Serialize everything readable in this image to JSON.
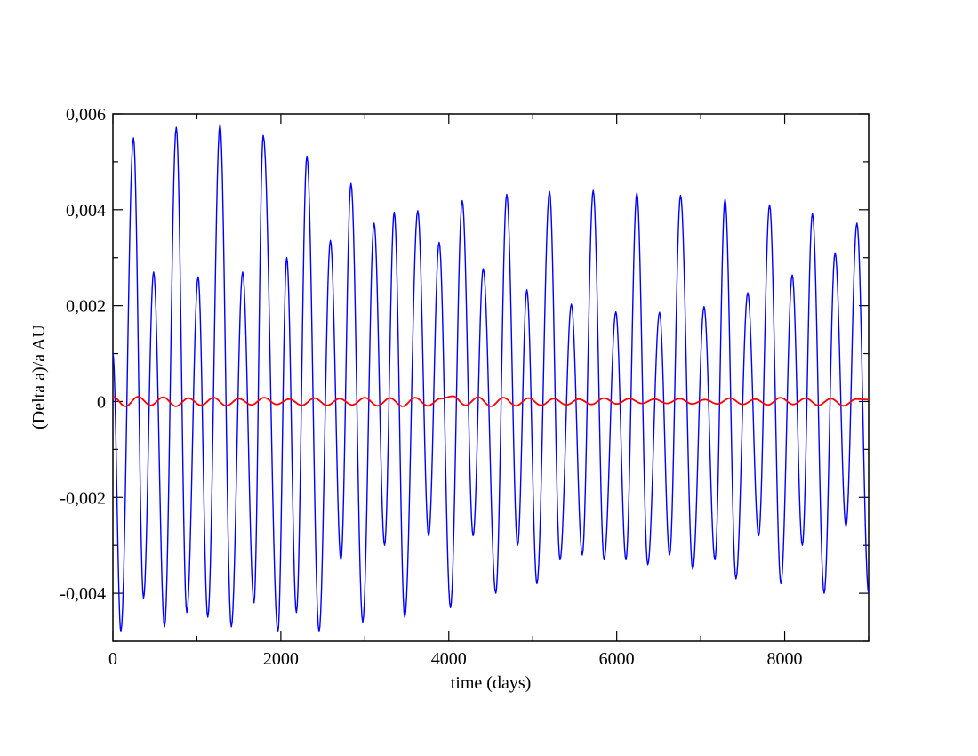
{
  "chart_data": {
    "type": "line",
    "title": "",
    "xlabel": "time (days)",
    "ylabel": "(Delta a)/a AU",
    "xlim": [
      0,
      9000
    ],
    "ylim": [
      -0.005,
      0.006
    ],
    "xticks": [
      0,
      2000,
      4000,
      6000,
      8000
    ],
    "xtick_labels": [
      "0",
      "2000",
      "4000",
      "6000",
      "8000"
    ],
    "yticks": [
      -0.004,
      -0.002,
      0,
      0.002,
      0.004,
      0.006
    ],
    "ytick_labels": [
      "-0,004",
      "-0,002",
      "0",
      "0,002",
      "0,004",
      "0,006"
    ],
    "grid": false,
    "legend": "none",
    "series": [
      {
        "color": "#0000ff",
        "x": [
          0,
          95,
          245,
          365,
          485,
          615,
          755,
          880,
          1015,
          1130,
          1275,
          1410,
          1545,
          1680,
          1790,
          1965,
          2070,
          2185,
          2310,
          2455,
          2590,
          2715,
          2835,
          2975,
          3110,
          3235,
          3350,
          3475,
          3630,
          3760,
          3885,
          4020,
          4160,
          4290,
          4410,
          4560,
          4690,
          4820,
          4930,
          5050,
          5200,
          5325,
          5460,
          5590,
          5720,
          5850,
          5990,
          6110,
          6240,
          6370,
          6510,
          6630,
          6760,
          6905,
          7040,
          7170,
          7290,
          7420,
          7560,
          7690,
          7820,
          7955,
          8090,
          8210,
          8330,
          8470,
          8600,
          8730,
          8860,
          9000
        ],
        "y": [
          0.001,
          -0.0048,
          0.0055,
          -0.0041,
          0.0027,
          -0.0047,
          0.00572,
          -0.0044,
          0.0026,
          -0.0045,
          0.00578,
          -0.0047,
          0.0027,
          -0.0042,
          0.00555,
          -0.0048,
          0.003,
          -0.0044,
          0.00512,
          -0.0048,
          0.00336,
          -0.0033,
          0.00455,
          -0.0046,
          0.00372,
          -0.003,
          0.00395,
          -0.0045,
          0.00398,
          -0.0028,
          0.00332,
          -0.0043,
          0.00419,
          -0.0028,
          0.00277,
          -0.004,
          0.00432,
          -0.003,
          0.00233,
          -0.0038,
          0.00438,
          -0.0033,
          0.00203,
          -0.0032,
          0.0044,
          -0.0033,
          0.00187,
          -0.0033,
          0.00435,
          -0.0034,
          0.00186,
          -0.0032,
          0.0043,
          -0.0035,
          0.00198,
          -0.0033,
          0.00422,
          -0.0037,
          0.00227,
          -0.0028,
          0.0041,
          -0.0038,
          0.00264,
          -0.003,
          0.00392,
          -0.004,
          0.0031,
          -0.0026,
          0.00372,
          -0.004
        ]
      },
      {
        "color": "#ff0000",
        "x": [
          0,
          150,
          300,
          450,
          600,
          750,
          900,
          1050,
          1200,
          1350,
          1500,
          1650,
          1800,
          1950,
          2100,
          2250,
          2400,
          2550,
          2700,
          2850,
          3000,
          3150,
          3300,
          3450,
          3600,
          3750,
          3900,
          4050,
          4200,
          4350,
          4500,
          4650,
          4800,
          4950,
          5100,
          5250,
          5400,
          5550,
          5700,
          5850,
          6000,
          6150,
          6300,
          6450,
          6600,
          6750,
          6900,
          7050,
          7200,
          7350,
          7500,
          7650,
          7800,
          7950,
          8100,
          8250,
          8400,
          8550,
          8700,
          8850,
          9000
        ],
        "y": [
          0.0001,
          -0.0001,
          0.0001,
          -8e-05,
          9e-05,
          -0.0001,
          7e-05,
          -8e-05,
          8e-05,
          -9e-05,
          6e-05,
          -7e-05,
          8e-05,
          -6e-05,
          5e-05,
          -8e-05,
          7e-05,
          -8e-05,
          6e-05,
          -7e-05,
          8e-05,
          -9e-05,
          7e-05,
          -0.0001,
          8e-05,
          -9e-05,
          6e-05,
          0.00011,
          -8e-05,
          9e-05,
          -0.0001,
          8e-05,
          -9e-05,
          7e-05,
          -8e-05,
          6e-05,
          -7e-05,
          5e-05,
          -6e-05,
          7e-05,
          -5e-05,
          6e-05,
          -4e-05,
          5e-05,
          -4e-05,
          6e-05,
          -5e-05,
          4e-05,
          -5e-05,
          7e-05,
          -6e-05,
          5e-05,
          -7e-05,
          8e-05,
          -6e-05,
          7e-05,
          -8e-05,
          6e-05,
          -9e-05,
          5e-05,
          4e-05
        ]
      }
    ]
  }
}
